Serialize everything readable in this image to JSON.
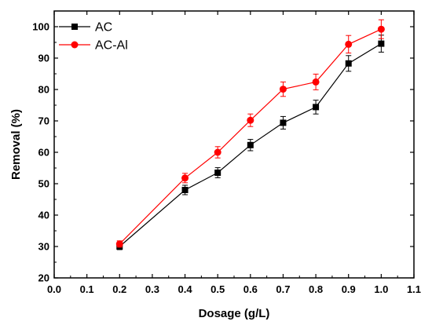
{
  "chart_data": {
    "type": "line",
    "title": "",
    "xlabel": "Dosage (g/L)",
    "ylabel": "Removal (%)",
    "xlim": [
      0.0,
      1.1
    ],
    "ylim": [
      20,
      105
    ],
    "x_ticks": [
      "0.0",
      "0.1",
      "0.2",
      "0.3",
      "0.4",
      "0.5",
      "0.6",
      "0.7",
      "0.8",
      "0.9",
      "1.0",
      "1.1"
    ],
    "y_ticks": [
      "20",
      "30",
      "40",
      "50",
      "60",
      "70",
      "80",
      "90",
      "100"
    ],
    "grid": false,
    "legend_position": "top-left",
    "x": [
      0.2,
      0.4,
      0.5,
      0.6,
      0.7,
      0.8,
      0.9,
      1.0
    ],
    "series": [
      {
        "name": "AC",
        "color": "#000000",
        "marker": "square",
        "values": [
          30,
          48,
          53.5,
          62.3,
          69.4,
          74.4,
          88.3,
          94.6
        ],
        "error": [
          1.0,
          1.5,
          1.6,
          1.8,
          2.0,
          2.2,
          2.5,
          2.7
        ]
      },
      {
        "name": "AC-Al",
        "color": "#ff0000",
        "marker": "circle",
        "values": [
          30.8,
          51.8,
          60,
          70.2,
          80.1,
          82.4,
          94.4,
          99.2
        ],
        "error": [
          1.0,
          1.5,
          1.8,
          2.0,
          2.3,
          2.5,
          2.8,
          3.0
        ]
      }
    ]
  }
}
